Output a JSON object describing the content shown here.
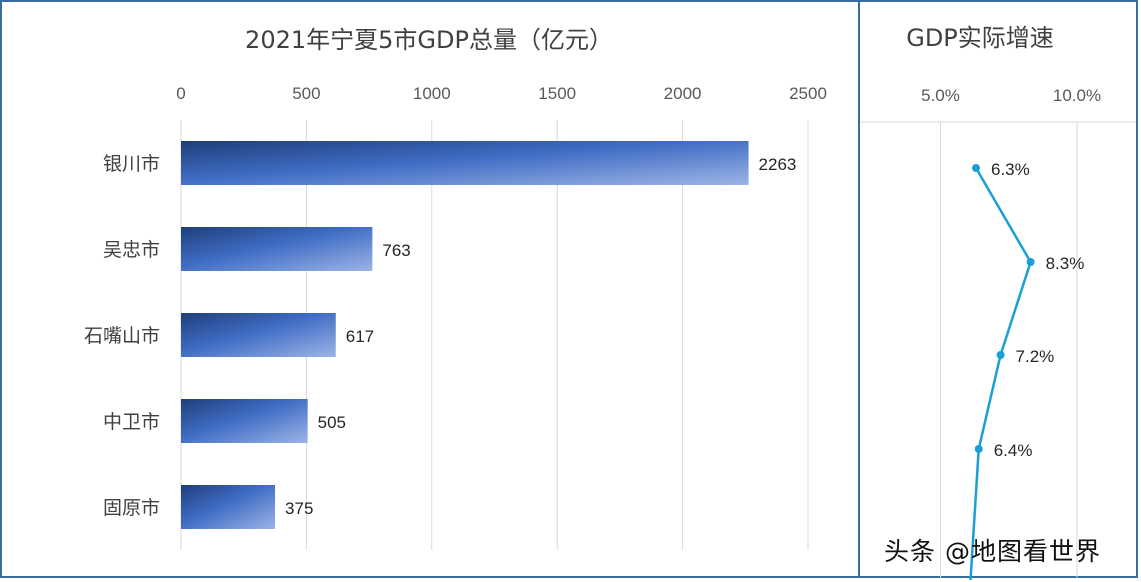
{
  "chart_data": [
    {
      "type": "bar",
      "orientation": "horizontal",
      "title": "2021年宁夏5市GDP总量（亿元）",
      "categories": [
        "银川市",
        "吴忠市",
        "石嘴山市",
        "中卫市",
        "固原市"
      ],
      "values": [
        2263,
        763,
        617,
        505,
        375
      ],
      "data_labels": [
        "2263",
        "763",
        "617",
        "505",
        "375"
      ],
      "xlim": [
        0,
        2500
      ],
      "x_ticks": [
        "0",
        "500",
        "1000",
        "1500",
        "2000",
        "2500"
      ],
      "axis_position": "top",
      "grid": true,
      "bar_color": "#4a72c4"
    },
    {
      "type": "line",
      "title": "GDP实际增速",
      "categories": [
        "银川市",
        "吴忠市",
        "石嘴山市",
        "中卫市",
        "固原市"
      ],
      "values": [
        6.3,
        8.3,
        7.2,
        6.4,
        6.1
      ],
      "data_labels": [
        "6.3%",
        "8.3%",
        "7.2%",
        "6.4%",
        ""
      ],
      "x_ticks": [
        "5.0%",
        "10.0%"
      ],
      "axis_position": "top",
      "grid": true,
      "line_color": "#1aa0d6"
    }
  ],
  "watermark": "头条 @地图看世界"
}
